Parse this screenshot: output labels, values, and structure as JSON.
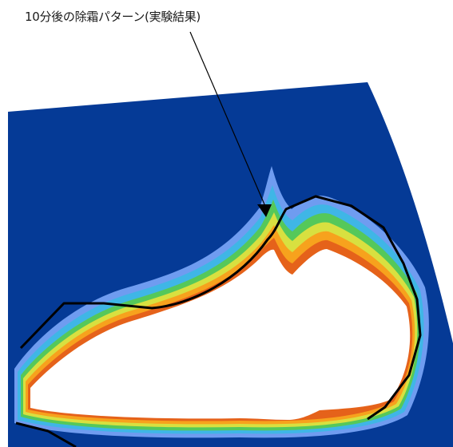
{
  "annotation": {
    "text": "10分後の除霜パターン(実験結果)"
  },
  "colors": {
    "background_field": "#053a96",
    "cleared_area": "#ffffff",
    "contour_bands": [
      "#6f9cf0",
      "#3fb6e6",
      "#55c85a",
      "#d8e040",
      "#f7a21d",
      "#e5621a",
      "#c83d12"
    ],
    "outline": "#000000"
  }
}
